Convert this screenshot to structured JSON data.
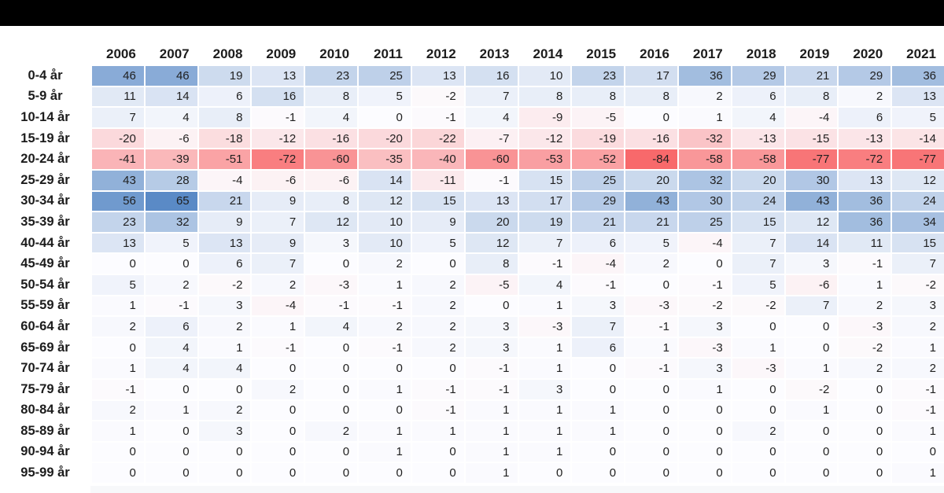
{
  "frame": {
    "top_bar_color": "#000000",
    "background_color": "#ffffff",
    "clipped_next_row_color": "#f7f8fa"
  },
  "chart_data": {
    "type": "heatmap",
    "title": "",
    "columns": [
      "2006",
      "2007",
      "2008",
      "2009",
      "2010",
      "2011",
      "2012",
      "2013",
      "2014",
      "2015",
      "2016",
      "2017",
      "2018",
      "2019",
      "2020",
      "2021"
    ],
    "rows": [
      "0-4 år",
      "5-9 år",
      "10-14 år",
      "15-19 år",
      "20-24 år",
      "25-29 år",
      "30-34 år",
      "35-39 år",
      "40-44 år",
      "45-49 år",
      "50-54 år",
      "55-59 år",
      "60-64 år",
      "65-69 år",
      "70-74 år",
      "75-79 år",
      "80-84 år",
      "85-89 år",
      "90-94 år",
      "95-99 år"
    ],
    "values": [
      [
        46,
        46,
        19,
        13,
        23,
        25,
        13,
        16,
        10,
        23,
        17,
        36,
        29,
        21,
        29,
        36
      ],
      [
        11,
        14,
        6,
        16,
        8,
        5,
        -2,
        7,
        8,
        8,
        8,
        2,
        6,
        8,
        2,
        13
      ],
      [
        7,
        4,
        8,
        -1,
        4,
        0,
        -1,
        4,
        -9,
        -5,
        0,
        1,
        4,
        -4,
        6,
        5
      ],
      [
        -20,
        -6,
        -18,
        -12,
        -16,
        -20,
        -22,
        -7,
        -12,
        -19,
        -16,
        -32,
        -13,
        -15,
        -13,
        -14
      ],
      [
        -41,
        -39,
        -51,
        -72,
        -60,
        -35,
        -40,
        -60,
        -53,
        -52,
        -84,
        -58,
        -58,
        -77,
        -72,
        -77
      ],
      [
        43,
        28,
        -4,
        -6,
        -6,
        14,
        -11,
        -1,
        15,
        25,
        20,
        32,
        20,
        30,
        13,
        12
      ],
      [
        56,
        65,
        21,
        9,
        8,
        12,
        15,
        13,
        17,
        29,
        43,
        30,
        24,
        43,
        36,
        24
      ],
      [
        23,
        32,
        9,
        7,
        12,
        10,
        9,
        20,
        19,
        21,
        21,
        25,
        15,
        12,
        36,
        34
      ],
      [
        13,
        5,
        13,
        9,
        3,
        10,
        5,
        12,
        7,
        6,
        5,
        -4,
        7,
        14,
        11,
        15
      ],
      [
        0,
        0,
        6,
        7,
        0,
        2,
        0,
        8,
        -1,
        -4,
        2,
        0,
        7,
        3,
        -1,
        7
      ],
      [
        5,
        2,
        -2,
        2,
        -3,
        1,
        2,
        -5,
        4,
        -1,
        0,
        -1,
        5,
        -6,
        1,
        -2
      ],
      [
        1,
        -1,
        3,
        -4,
        -1,
        -1,
        2,
        0,
        1,
        3,
        -3,
        -2,
        -2,
        7,
        2,
        3
      ],
      [
        2,
        6,
        2,
        1,
        4,
        2,
        2,
        3,
        -3,
        7,
        -1,
        3,
        0,
        0,
        -3,
        2
      ],
      [
        0,
        4,
        1,
        -1,
        0,
        -1,
        2,
        3,
        1,
        6,
        1,
        -3,
        1,
        0,
        -2,
        1
      ],
      [
        1,
        4,
        4,
        0,
        0,
        0,
        0,
        -1,
        1,
        0,
        -1,
        3,
        -3,
        1,
        2,
        2
      ],
      [
        -1,
        0,
        0,
        2,
        0,
        1,
        -1,
        -1,
        3,
        0,
        0,
        1,
        0,
        -2,
        0,
        -1
      ],
      [
        2,
        1,
        2,
        0,
        0,
        0,
        -1,
        1,
        1,
        1,
        0,
        0,
        0,
        1,
        0,
        -1
      ],
      [
        1,
        0,
        3,
        0,
        2,
        1,
        1,
        1,
        1,
        1,
        0,
        0,
        2,
        0,
        0,
        1
      ],
      [
        0,
        0,
        0,
        0,
        0,
        1,
        0,
        1,
        1,
        0,
        0,
        0,
        0,
        0,
        0,
        0
      ],
      [
        0,
        0,
        0,
        0,
        0,
        0,
        0,
        1,
        0,
        0,
        0,
        0,
        0,
        0,
        0,
        1
      ]
    ],
    "color_scale": {
      "min_value": -84,
      "mid_value": 0,
      "max_value": 65,
      "min_color": "#F8696B",
      "mid_color": "#FCFCFF",
      "max_color": "#5A8AC6"
    },
    "legend": "none",
    "grid": "white-gaps"
  }
}
